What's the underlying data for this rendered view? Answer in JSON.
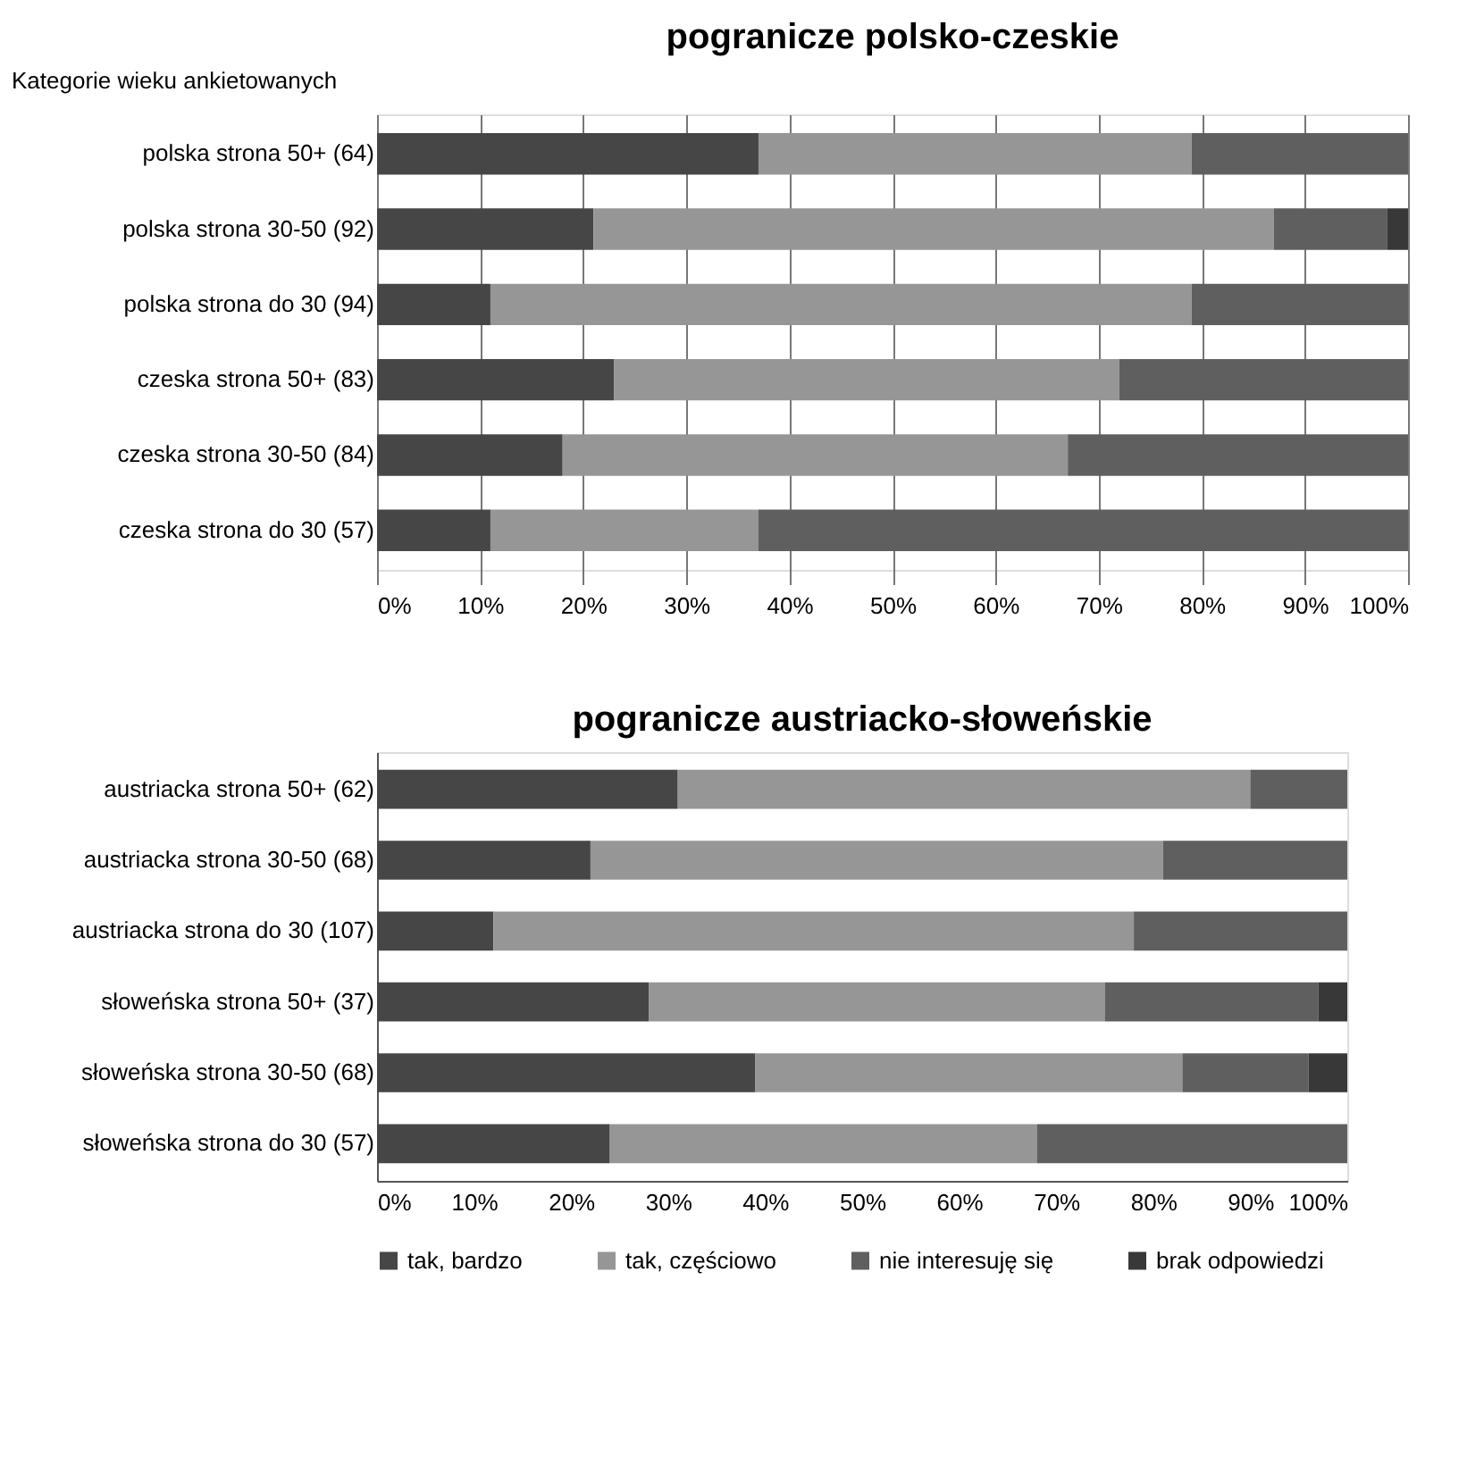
{
  "chart_data": [
    {
      "type": "bar",
      "orientation": "horizontal",
      "stacked": true,
      "title": "pogranicze polsko-czeskie",
      "ylabel": "Kategorie wieku ankietowanych",
      "categories": [
        "polska strona 50+ (64)",
        "polska strona 30-50 (92)",
        "polska strona do 30 (94)",
        "czeska strona 50+ (83)",
        "czeska strona 30-50 (84)",
        "czeska strona do 30 (57)"
      ],
      "series": [
        {
          "color": "#464646",
          "values": [
            37,
            21,
            11,
            23,
            18,
            11
          ]
        },
        {
          "color": "#969696",
          "values": [
            42,
            66,
            68,
            49,
            49,
            26
          ]
        },
        {
          "color": "#5f5f5f",
          "values": [
            21,
            11,
            21,
            28,
            33,
            63
          ]
        },
        {
          "color": "#383838",
          "values": [
            0,
            2,
            0,
            0,
            0,
            0
          ]
        }
      ],
      "xlim": [
        0,
        100
      ],
      "xticks": [
        {
          "value": 0,
          "label": "0%"
        },
        {
          "value": 10,
          "label": "10%"
        },
        {
          "value": 20,
          "label": "20%"
        },
        {
          "value": 30,
          "label": "30%"
        },
        {
          "value": 40,
          "label": "40%"
        },
        {
          "value": 50,
          "label": "50%"
        },
        {
          "value": 60,
          "label": "60%"
        },
        {
          "value": 70,
          "label": "70%"
        },
        {
          "value": 80,
          "label": "80%"
        },
        {
          "value": 90,
          "label": "90%"
        },
        {
          "value": 100,
          "label": "100%"
        }
      ],
      "grid": "x",
      "legend": false
    },
    {
      "type": "bar",
      "orientation": "horizontal",
      "stacked": true,
      "title": "pogranicze austriacko-słoweńskie",
      "categories": [
        "austriacka strona 50+ (62)",
        "austriacka strona 30-50 (68)",
        "austriacka strona do 30 (107)",
        "słoweńska strona 50+ (37)",
        "słoweńska strona 30-50 (68)",
        "słoweńska strona do 30 (57)"
      ],
      "series": [
        {
          "name": "tak, bardzo",
          "color": "#464646",
          "values": [
            31,
            22,
            12,
            28,
            39,
            24
          ]
        },
        {
          "name": "tak, częściowo",
          "color": "#969696",
          "values": [
            59,
            59,
            66,
            47,
            44,
            44
          ]
        },
        {
          "name": "nie interesuję się",
          "color": "#5f5f5f",
          "values": [
            10,
            19,
            22,
            22,
            13,
            32
          ]
        },
        {
          "name": "brak odpowiedzi",
          "color": "#383838",
          "values": [
            0,
            0,
            0,
            3,
            4,
            0
          ]
        }
      ],
      "xlim": [
        0,
        100
      ],
      "xticks": [
        {
          "value": 0,
          "label": "0%"
        },
        {
          "value": 10,
          "label": "10%"
        },
        {
          "value": 20,
          "label": "20%"
        },
        {
          "value": 30,
          "label": "30%"
        },
        {
          "value": 40,
          "label": "40%"
        },
        {
          "value": 50,
          "label": "50%"
        },
        {
          "value": 60,
          "label": "60%"
        },
        {
          "value": 70,
          "label": "70%"
        },
        {
          "value": 80,
          "label": "80%"
        },
        {
          "value": 90,
          "label": "90%"
        },
        {
          "value": 100,
          "label": "100%"
        }
      ],
      "grid": false,
      "legend": "bottom"
    }
  ]
}
